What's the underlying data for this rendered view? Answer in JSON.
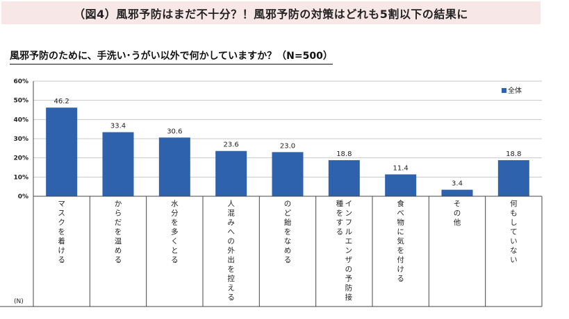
{
  "banner": {
    "title": "（図4）風邪予防はまだ不十分？！風邪予防の対策はどれも5割以下の結果に"
  },
  "question": {
    "text": "風邪予防のために、手洗い･うがい以外で何かしていますか？（N=500）"
  },
  "chart_data": {
    "type": "bar",
    "categories": [
      "マスクを着ける",
      "からだを温める",
      "水分を多くとる",
      "人混みへの外出を控える",
      "のど飴をなめる",
      "インフルエンザの予防接種をする",
      "食べ物に気を付ける",
      "その他",
      "何もしていない"
    ],
    "series": [
      {
        "name": "全体",
        "values": [
          46.2,
          33.4,
          30.6,
          23.6,
          23.0,
          18.8,
          11.4,
          3.4,
          18.8
        ]
      }
    ],
    "value_labels": [
      "46.2",
      "33.4",
      "30.6",
      "23.6",
      "23.0",
      "18.8",
      "11.4",
      "3.4",
      "18.8"
    ],
    "y_ticks": [
      "0%",
      "10%",
      "20%",
      "30%",
      "40%",
      "50%",
      "60%"
    ],
    "ylim": [
      0,
      60
    ],
    "grid": true,
    "legend": "top-right",
    "bar_color": "#2e62ad",
    "table_label": "(N)"
  }
}
